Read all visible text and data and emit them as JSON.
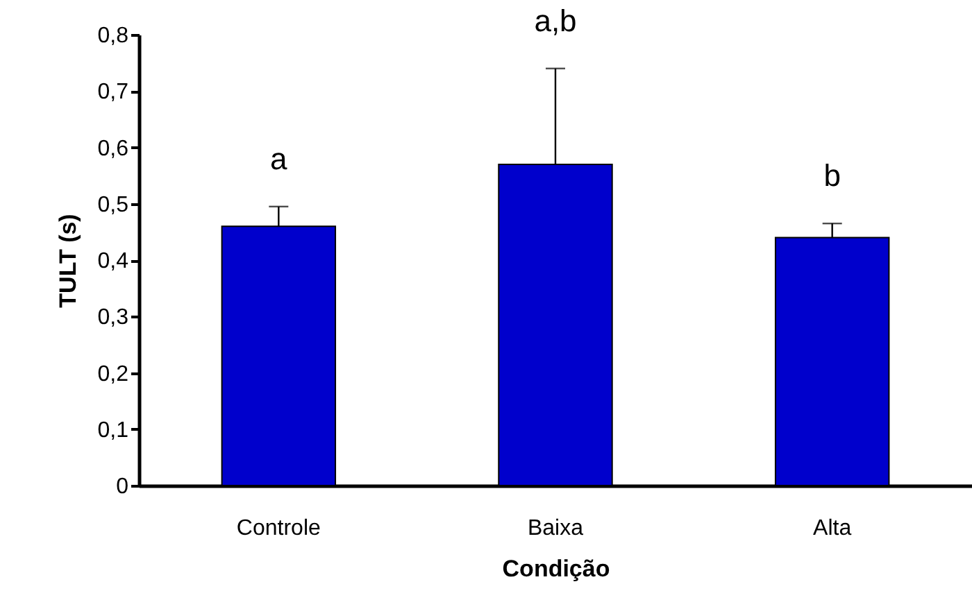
{
  "chart_data": {
    "type": "bar",
    "xlabel": "Condição",
    "ylabel": "TULT (s)",
    "categories": [
      "Controle",
      "Baixa",
      "Alta"
    ],
    "values": [
      0.46,
      0.57,
      0.44
    ],
    "color": "#0000cc",
    "errors": [
      [
        0.46,
        0.495
      ],
      [
        0.57,
        0.74
      ],
      [
        0.44,
        0.465
      ]
    ],
    "ylim": [
      0,
      0.8
    ],
    "yticks": [
      0,
      {
        "value": 0.1,
        "label": "0,1"
      },
      {
        "value": 0.2,
        "label": "0,2"
      },
      {
        "value": 0.3,
        "label": "0,3"
      },
      {
        "value": 0.4,
        "label": "0,4"
      },
      {
        "value": 0.5,
        "label": "0,5"
      },
      {
        "value": 0.6,
        "label": "0,6"
      },
      {
        "value": 0.7,
        "label": "0,7"
      },
      {
        "value": 0.8,
        "label": "0,8"
      }
    ],
    "annotations": [
      "a",
      "a,b",
      "b"
    ],
    "grid": false
  }
}
